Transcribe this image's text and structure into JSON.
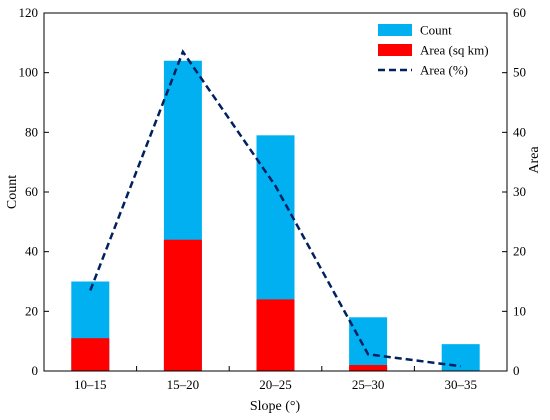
{
  "chart_data": {
    "type": "bar",
    "categories": [
      "10–15",
      "15–20",
      "20–25",
      "25–30",
      "30–35"
    ],
    "xlabel": "Slope (°)",
    "ylabel": "Count",
    "y2label": "Area",
    "ylim": [
      0,
      120
    ],
    "y2lim": [
      0,
      60
    ],
    "yticks": [
      "0",
      "20",
      "40",
      "60",
      "80",
      "100",
      "120"
    ],
    "y2ticks": [
      "0",
      "10",
      "20",
      "30",
      "40",
      "50",
      "60"
    ],
    "series": [
      {
        "name": "Count",
        "kind": "bar",
        "axis": "left",
        "color": "#00b0f0",
        "values": [
          30,
          104,
          79,
          18,
          9
        ]
      },
      {
        "name": "Area (sq km)",
        "kind": "bar",
        "axis": "left",
        "color": "#ff0000",
        "values": [
          11,
          44,
          24,
          2,
          0
        ]
      },
      {
        "name": "Area (%)",
        "kind": "line",
        "style": "dashed",
        "axis": "right",
        "color": "#002060",
        "values": [
          13.5,
          53.5,
          31,
          2.8,
          0.8
        ]
      }
    ],
    "legend_position": "top-right",
    "grid": false
  }
}
